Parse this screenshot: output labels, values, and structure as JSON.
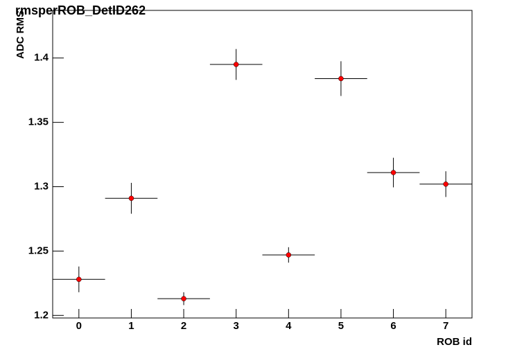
{
  "chart_data": {
    "type": "scatter",
    "title": "rmsperROB_DetID262",
    "x_label": "ROB id",
    "y_label": "ADC RMS",
    "x": [
      0,
      1,
      2,
      3,
      4,
      5,
      6,
      7
    ],
    "values": [
      1.228,
      1.291,
      1.213,
      1.395,
      1.247,
      1.384,
      1.311,
      1.302
    ],
    "errors": [
      0.01,
      0.012,
      0.005,
      0.012,
      0.006,
      0.0135,
      0.0115,
      0.01
    ],
    "x_errors": [
      0.5,
      0.5,
      0.5,
      0.5,
      0.5,
      0.5,
      0.5,
      0.5
    ],
    "color": "#ff0000",
    "xlim": [
      -0.5,
      7.5
    ],
    "xticks": [
      0,
      1,
      2,
      3,
      4,
      5,
      6,
      7
    ],
    "ylim": [
      1.198,
      1.437
    ],
    "yticks": [
      1.2,
      1.25,
      1.3,
      1.35,
      1.4
    ],
    "grid": false
  }
}
